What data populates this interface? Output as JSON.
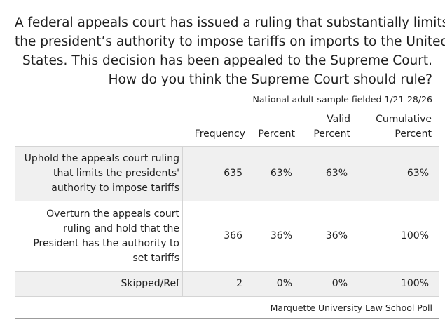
{
  "question_lines": [
    "A federal appeals court has issued a ruling that substantially limits",
    "the president’s authority to impose tariffs on imports to the United",
    "States. This decision has been appealed to the Supreme Court.",
    "How do you think the Supreme Court should rule?"
  ],
  "sample_note": "National adult sample fielded 1/21-28/26",
  "columns": {
    "frequency": "Frequency",
    "percent": "Percent",
    "valid_percent_1": "Valid",
    "valid_percent_2": "Percent",
    "cumulative_1": "Cumulative",
    "cumulative_2": "Percent"
  },
  "rows": [
    {
      "label_lines": [
        "Uphold the appeals court ruling",
        "that limits the presidents'",
        "authority to impose tariffs"
      ],
      "frequency": "635",
      "percent": "63%",
      "valid_percent": "63%",
      "cumulative_percent": "63%"
    },
    {
      "label_lines": [
        "Overturn the appeals court",
        "ruling and hold that the",
        "President has the authority to",
        "set tariffs"
      ],
      "frequency": "366",
      "percent": "36%",
      "valid_percent": "36%",
      "cumulative_percent": "100%"
    },
    {
      "label_lines": [
        "Skipped/Ref"
      ],
      "frequency": "2",
      "percent": "0%",
      "valid_percent": "0%",
      "cumulative_percent": "100%"
    }
  ],
  "source": "Marquette University Law School Poll"
}
